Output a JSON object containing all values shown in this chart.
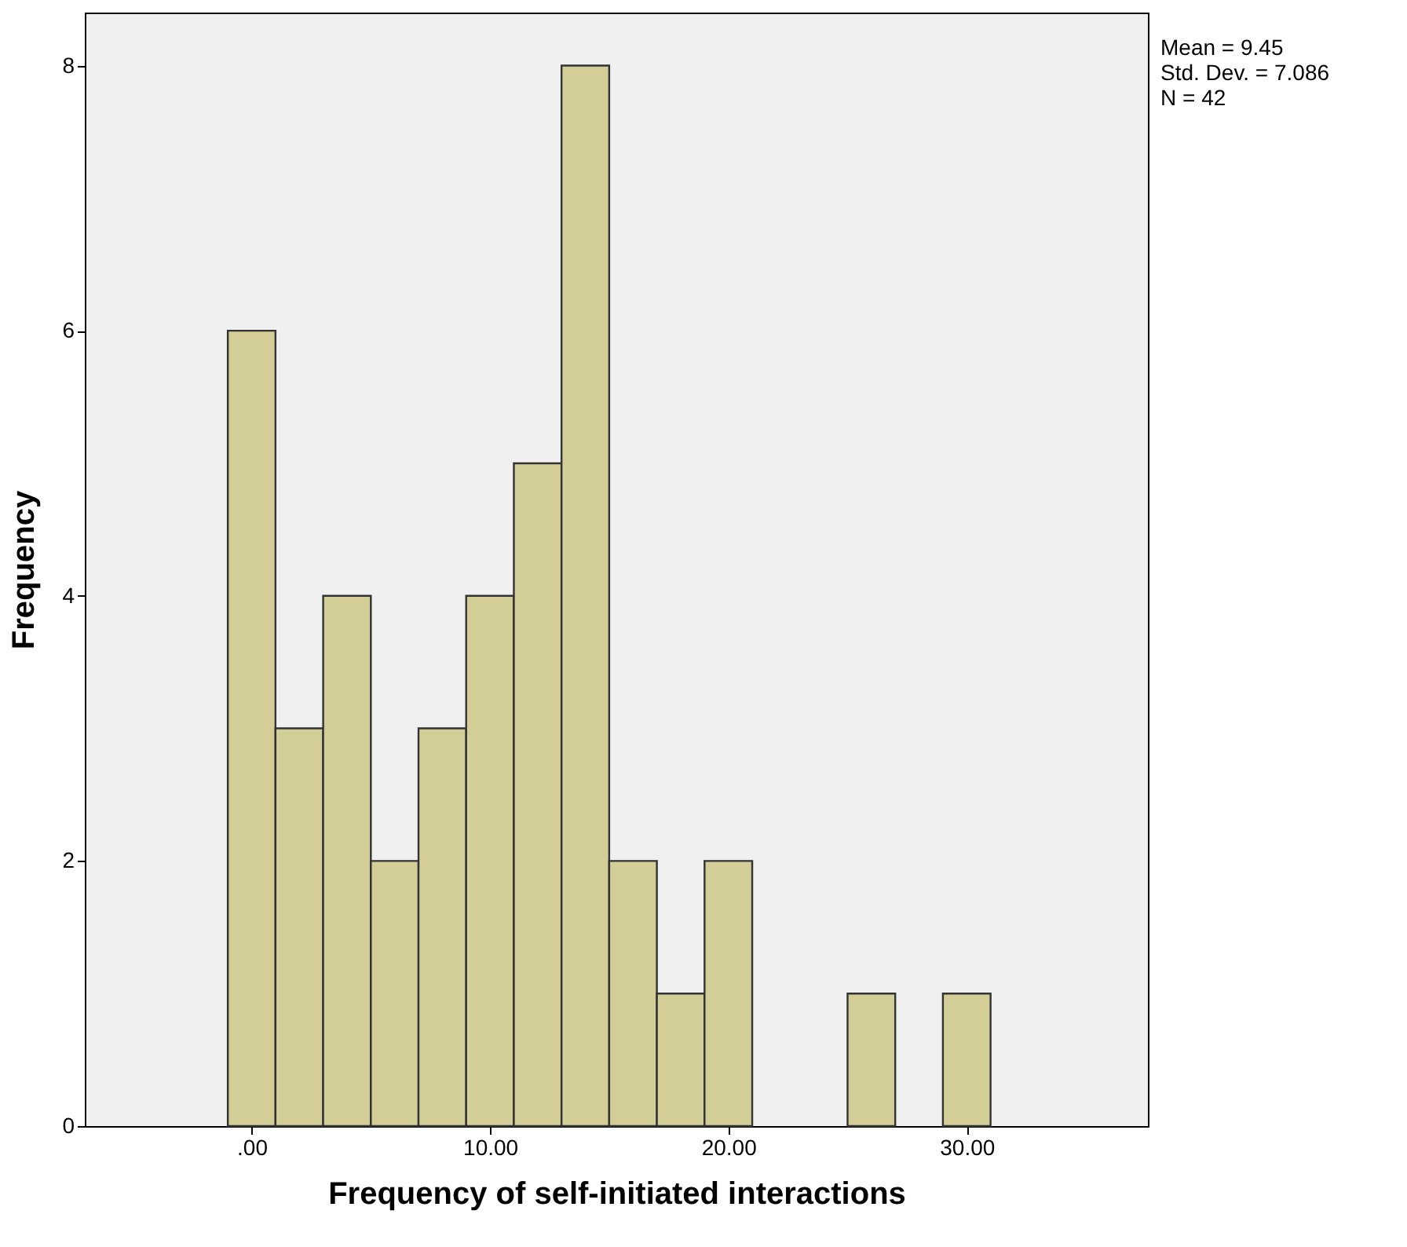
{
  "chart_data": {
    "type": "histogram",
    "xlabel": "Frequency of self-initiated interactions",
    "ylabel": "Frequency",
    "bins": [
      -1,
      1,
      3,
      5,
      7,
      9,
      11,
      13,
      15,
      17,
      19,
      21,
      23,
      25,
      27,
      29,
      31
    ],
    "values": [
      6,
      3,
      4,
      2,
      3,
      4,
      5,
      8,
      2,
      1,
      2,
      0,
      0,
      1,
      0,
      1
    ],
    "color": "#d3ce97",
    "xlim": [
      -7,
      37.6
    ],
    "ylim": [
      0,
      8.4
    ],
    "xticks": [
      {
        "value": 0,
        "label": ".00"
      },
      {
        "value": 10,
        "label": "10.00"
      },
      {
        "value": 20,
        "label": "20.00"
      },
      {
        "value": 30,
        "label": "30.00"
      }
    ],
    "yticks": [
      0,
      2,
      4,
      6,
      8
    ],
    "grid": false,
    "annotations": [
      "Mean = 9.45",
      "Std. Dev. = 7.086",
      "N = 42"
    ]
  }
}
